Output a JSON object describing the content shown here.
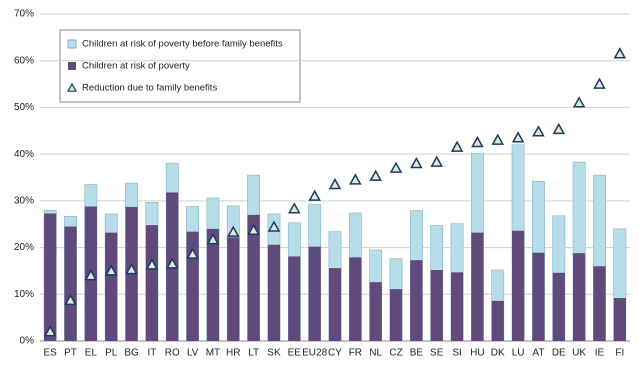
{
  "chart_data": {
    "type": "bar",
    "categories": [
      "ES",
      "PT",
      "EL",
      "PL",
      "BG",
      "IT",
      "RO",
      "LV",
      "MT",
      "HR",
      "LT",
      "SK",
      "EE",
      "EU28",
      "CY",
      "FR",
      "NL",
      "CZ",
      "BE",
      "SE",
      "SI",
      "HU",
      "DK",
      "LU",
      "AT",
      "DE",
      "UK",
      "IE",
      "FI"
    ],
    "series": [
      {
        "name": "Children at risk of poverty before family benefits",
        "color": "#b7dde8",
        "values": [
          28.0,
          26.7,
          33.5,
          27.2,
          33.8,
          29.7,
          38.1,
          28.8,
          30.6,
          28.9,
          35.5,
          27.2,
          25.3,
          29.2,
          23.4,
          27.4,
          19.5,
          17.6,
          27.9,
          24.7,
          25.1,
          40.2,
          15.2,
          42.0,
          34.2,
          26.8,
          38.3,
          35.5,
          24.0
        ]
      },
      {
        "name": "Children at risk of poverty",
        "color": "#604a7b",
        "values": [
          27.3,
          24.5,
          28.8,
          23.2,
          28.7,
          24.8,
          31.8,
          23.4,
          24.0,
          22.2,
          27.0,
          20.6,
          18.1,
          20.2,
          15.6,
          17.9,
          12.6,
          11.1,
          17.3,
          15.2,
          14.7,
          23.2,
          8.6,
          23.6,
          18.9,
          14.6,
          18.8,
          16.0,
          9.2
        ]
      },
      {
        "name": "Reduction due to family benefits",
        "color": "#d8ecd2",
        "values": [
          2.0,
          8.7,
          14.0,
          15.0,
          15.3,
          16.3,
          16.5,
          18.6,
          21.7,
          23.3,
          23.7,
          24.4,
          28.3,
          31.0,
          33.5,
          34.5,
          35.3,
          37.0,
          38.0,
          38.3,
          41.5,
          42.5,
          43.0,
          43.5,
          44.8,
          45.3,
          51.0,
          55.0,
          61.5
        ]
      }
    ],
    "ylim": [
      0,
      70
    ],
    "yticks": [
      {
        "value": 0,
        "label": "0%"
      },
      {
        "value": 10,
        "label": "10%"
      },
      {
        "value": 20,
        "label": "20%"
      },
      {
        "value": 30,
        "label": "30%"
      },
      {
        "value": 40,
        "label": "40%"
      },
      {
        "value": 50,
        "label": "50%"
      },
      {
        "value": 60,
        "label": "60%"
      },
      {
        "value": 70,
        "label": "70%"
      }
    ],
    "grid": true
  }
}
